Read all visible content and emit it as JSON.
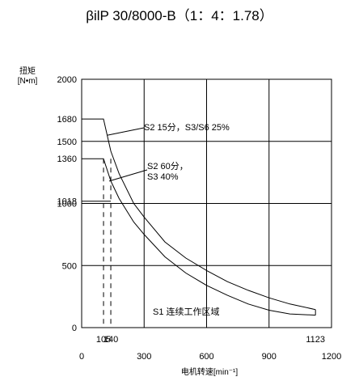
{
  "chart_data": {
    "type": "line",
    "title": "βilP 30/8000-B（1：4：1.78）",
    "ylabel_line1": "扭矩",
    "ylabel_line2": "[N•m]",
    "xlabel": "电机转速[min⁻¹]",
    "xlim": [
      0,
      1200
    ],
    "ylim": [
      0,
      2000
    ],
    "x_ticks": [
      0,
      300,
      600,
      900,
      1200
    ],
    "y_ticks": [
      0,
      500,
      1000,
      1500,
      2000
    ],
    "extra_x_labels": [
      105,
      140,
      1123
    ],
    "extra_y_labels": [
      1018,
      1360,
      1680
    ],
    "grid": true,
    "series": [
      {
        "name": "S2 15分，S3/S6 25%",
        "x": [
          0,
          105,
          140,
          180,
          250,
          300,
          400,
          500,
          600,
          700,
          800,
          900,
          1000,
          1123
        ],
        "y": [
          1680,
          1680,
          1420,
          1240,
          1000,
          890,
          690,
          560,
          460,
          370,
          300,
          240,
          190,
          145
        ]
      },
      {
        "name": "S2 60分，S3 40%",
        "x": [
          0,
          105,
          140,
          180,
          250,
          300,
          400,
          500,
          600,
          700,
          800,
          900,
          1000,
          1123
        ],
        "y": [
          1360,
          1360,
          1180,
          1040,
          850,
          750,
          570,
          440,
          340,
          260,
          190,
          140,
          110,
          100
        ]
      },
      {
        "name": "S1 连续工作区域",
        "x": [
          0,
          105,
          140
        ],
        "y": [
          1018,
          1018,
          1018
        ]
      }
    ],
    "annotations": {
      "s2_15": "S2 15分，S3/S6 25%",
      "s2_60_line1": "S2 60分，",
      "s2_60_line2": "S3 40%",
      "s1": "S1 连续工作区域"
    }
  }
}
